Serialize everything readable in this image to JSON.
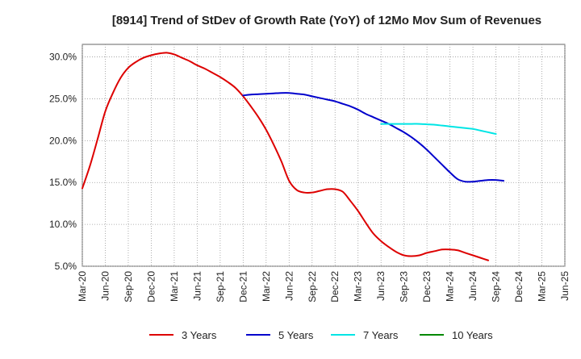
{
  "chart_data": {
    "type": "line",
    "title": "[8914]  Trend of StDev of Growth Rate (YoY) of 12Mo Mov Sum of Revenues",
    "xlabel": "",
    "ylabel": "",
    "x_tick_labels": [
      "Mar-20",
      "Jun-20",
      "Sep-20",
      "Dec-20",
      "Mar-21",
      "Jun-21",
      "Sep-21",
      "Dec-21",
      "Mar-22",
      "Jun-22",
      "Sep-22",
      "Dec-22",
      "Mar-23",
      "Jun-23",
      "Sep-23",
      "Dec-23",
      "Mar-24",
      "Jun-24",
      "Sep-24",
      "Dec-24",
      "Mar-25",
      "Jun-25"
    ],
    "y_ticks": [
      5.0,
      10.0,
      15.0,
      20.0,
      25.0,
      30.0
    ],
    "y_tick_labels": [
      "5.0%",
      "10.0%",
      "15.0%",
      "20.0%",
      "25.0%",
      "30.0%"
    ],
    "ylim": [
      5.0,
      31.5
    ],
    "grid": true,
    "legend_position": "bottom",
    "series": [
      {
        "name": "3 Years",
        "color": "#dd0000",
        "values": [
          14.3,
          17.0,
          20.2,
          23.5,
          25.7,
          27.5,
          28.7,
          29.4,
          29.9,
          30.2,
          30.4,
          30.5,
          30.3,
          29.9,
          29.5,
          29.0,
          28.6,
          28.1,
          27.6,
          27.0,
          26.3,
          25.3,
          24.1,
          22.8,
          21.3,
          19.5,
          17.5,
          15.2,
          14.1,
          13.8,
          13.8,
          14.0,
          14.2,
          14.2,
          13.9,
          12.8,
          11.6,
          10.2,
          8.9,
          8.0,
          7.3,
          6.7,
          6.3,
          6.2,
          6.3,
          6.6,
          6.8,
          7.0,
          7.0,
          6.9,
          6.6,
          6.3,
          6.0,
          5.7
        ],
        "start_index": 0
      },
      {
        "name": "5 Years",
        "color": "#0000cc",
        "values": [
          25.4,
          25.5,
          25.55,
          25.6,
          25.65,
          25.7,
          25.7,
          25.6,
          25.5,
          25.3,
          25.1,
          24.9,
          24.7,
          24.4,
          24.1,
          23.7,
          23.2,
          22.8,
          22.4,
          22.0,
          21.5,
          21.0,
          20.4,
          19.7,
          18.9,
          18.0,
          17.1,
          16.2,
          15.4,
          15.1,
          15.1,
          15.2,
          15.3,
          15.3,
          15.2
        ],
        "start_index": 21
      },
      {
        "name": "7 Years",
        "color": "#00e5e5",
        "values": [
          22.0,
          22.0,
          22.0,
          22.0,
          22.0,
          22.0,
          21.95,
          21.9,
          21.8,
          21.7,
          21.6,
          21.5,
          21.4,
          21.2,
          21.0,
          20.8
        ],
        "start_index": 39
      },
      {
        "name": "10 Years",
        "color": "#008800",
        "values": [],
        "start_index": 0
      }
    ]
  }
}
